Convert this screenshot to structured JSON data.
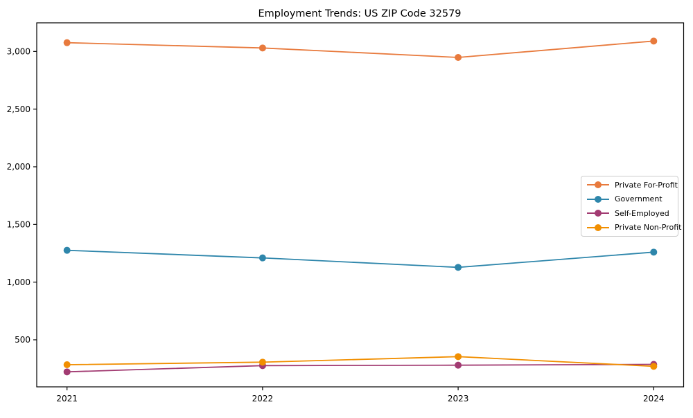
{
  "chart_data": {
    "type": "line",
    "title": "Employment Trends: US ZIP Code 32579",
    "x": [
      "2021",
      "2022",
      "2023",
      "2024"
    ],
    "series": [
      {
        "name": "Private For-Profit",
        "color": "#e87a3d",
        "values": [
          3076,
          3030,
          2948,
          3090
        ]
      },
      {
        "name": "Government",
        "color": "#2e86ab",
        "values": [
          1276,
          1210,
          1128,
          1260
        ]
      },
      {
        "name": "Self-Employed",
        "color": "#a23b72",
        "values": [
          222,
          276,
          280,
          287
        ]
      },
      {
        "name": "Private Non-Profit",
        "color": "#f18f01",
        "values": [
          284,
          306,
          354,
          270
        ]
      }
    ],
    "yticks": [
      500,
      1000,
      1500,
      2000,
      2500,
      3000
    ],
    "ytick_labels": [
      "500",
      "1,000",
      "1,500",
      "2,000",
      "2,500",
      "3,000"
    ],
    "ylim": [
      92,
      3248
    ],
    "xlabel": "",
    "ylabel": "",
    "grid": false,
    "legend_position": "center-right",
    "marker": "circle"
  }
}
